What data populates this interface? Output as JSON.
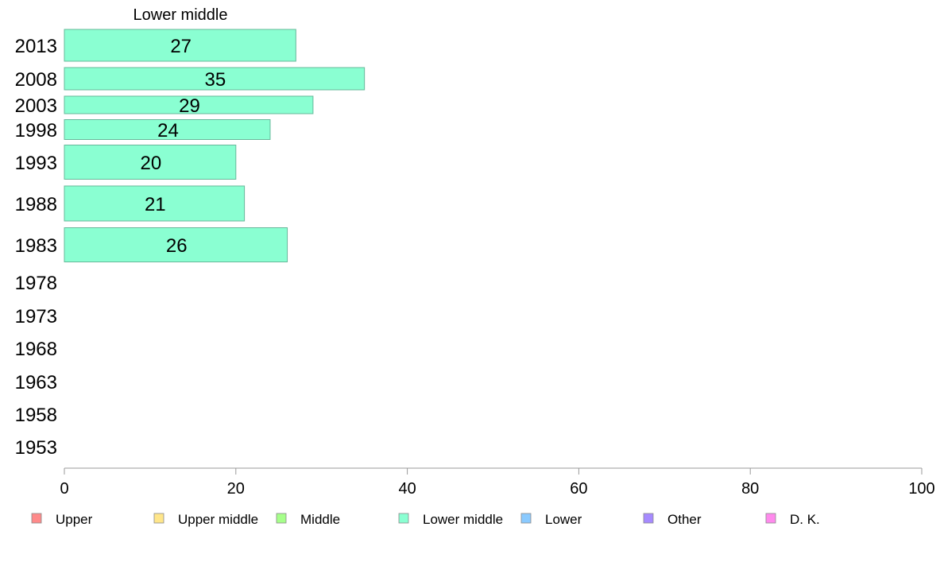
{
  "chart_data": {
    "type": "bar",
    "orientation": "horizontal",
    "title": "Lower middle",
    "categories": [
      "2013",
      "2008",
      "2003",
      "1998",
      "1993",
      "1988",
      "1983",
      "1978",
      "1973",
      "1968",
      "1963",
      "1958",
      "1953"
    ],
    "series": [
      {
        "name": "Lower middle",
        "color": "#8affd2",
        "values": [
          27,
          35,
          29,
          24,
          20,
          21,
          26,
          null,
          null,
          null,
          null,
          null,
          null
        ]
      }
    ],
    "xlim": [
      0,
      100
    ],
    "xticks": [
      0,
      20,
      40,
      60,
      80,
      100
    ],
    "grid": false,
    "legend": {
      "position": "bottom",
      "items": [
        {
          "label": "Upper",
          "color": "#ff8a8a"
        },
        {
          "label": "Upper middle",
          "color": "#ffe68a"
        },
        {
          "label": "Middle",
          "color": "#a6ff8a"
        },
        {
          "label": "Lower middle",
          "color": "#8affd2"
        },
        {
          "label": "Lower",
          "color": "#8acaff"
        },
        {
          "label": "Other",
          "color": "#a68aff"
        },
        {
          "label": "D. K.",
          "color": "#ff8aed"
        }
      ]
    }
  }
}
